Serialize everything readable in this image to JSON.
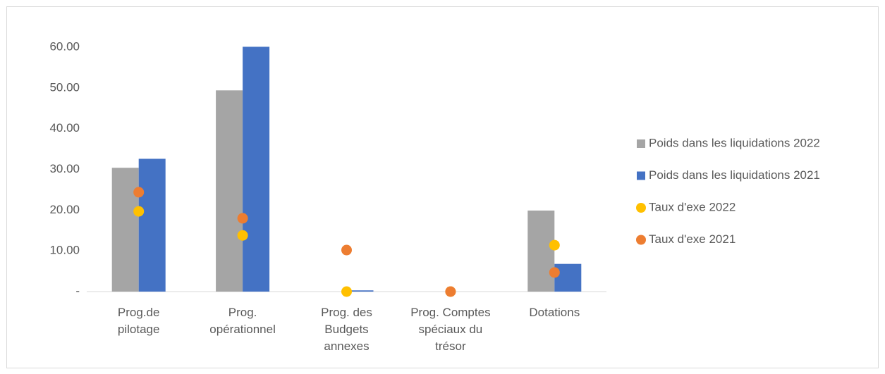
{
  "chart_data": {
    "type": "combo",
    "categories": [
      "Prog.de pilotage",
      "Prog. opérationnel",
      "Prog. des Budgets annexes",
      "Prog. Comptes spéciaux du trésor",
      "Dotations"
    ],
    "series": [
      {
        "name": "Poids dans les liquidations 2022",
        "type": "bar",
        "color": "#a5a5a5",
        "values": [
          30.4,
          49.4,
          0,
          0,
          19.9
        ]
      },
      {
        "name": "Poids dans les liquidations 2021",
        "type": "bar",
        "color": "#4472c4",
        "values": [
          32.6,
          60.1,
          0.3,
          0,
          6.8
        ]
      },
      {
        "name": "Taux d'exe 2022",
        "type": "scatter",
        "color": "#ffc000",
        "values": [
          19.7,
          13.8,
          0,
          0,
          11.4
        ]
      },
      {
        "name": "Taux d'exe 2021",
        "type": "scatter",
        "color": "#ed7d31",
        "values": [
          24.4,
          18.0,
          10.2,
          0,
          4.7
        ]
      }
    ],
    "ylim": [
      0,
      60
    ],
    "yticks": [
      {
        "value": 0,
        "label": "-"
      },
      {
        "value": 10,
        "label": "10.00"
      },
      {
        "value": 20,
        "label": "20.00"
      },
      {
        "value": 30,
        "label": "30.00"
      },
      {
        "value": 40,
        "label": "40.00"
      },
      {
        "value": 50,
        "label": "50.00"
      },
      {
        "value": 60,
        "label": "60.00"
      }
    ],
    "legend": "right"
  }
}
